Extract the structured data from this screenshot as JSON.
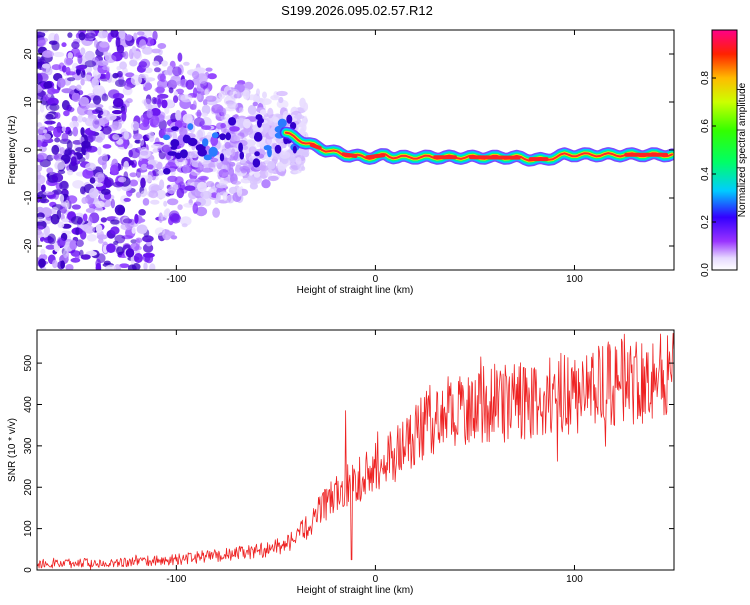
{
  "title": "S199.2026.095.02.57.R12",
  "chart_data": [
    {
      "type": "heatmap",
      "xlabel": "Height of straight line (km)",
      "ylabel": "Frequency (Hz)",
      "xlim": [
        -170,
        150
      ],
      "ylim": [
        -25,
        25
      ],
      "xticks": [
        -100,
        0,
        100
      ],
      "yticks": [
        -20,
        -10,
        0,
        10,
        20
      ],
      "ridge": {
        "x": [
          -45,
          -35,
          -25,
          -15,
          -5,
          0,
          5,
          10,
          30,
          50,
          70,
          80,
          85,
          95,
          110,
          130,
          150
        ],
        "y": [
          3.5,
          1.5,
          0.0,
          -1.0,
          -1.5,
          -1.5,
          -1.0,
          -1.5,
          -1.5,
          -1.5,
          -1.5,
          -2.0,
          -2.0,
          -1.0,
          -1.0,
          -1.0,
          -1.0
        ]
      },
      "colorbar": {
        "label": "Normalized spectral amplitude",
        "range": [
          0.0,
          1.0
        ],
        "ticks": [
          0.0,
          0.2,
          0.4,
          0.6,
          0.8
        ],
        "tick_labels": [
          "0.0",
          "0.2",
          "0.4",
          "0.6",
          "0.8"
        ],
        "colormap": "rainbow"
      }
    },
    {
      "type": "line",
      "xlabel": "Height of straight line (km)",
      "ylabel": "SNR (10 * v/v)",
      "xlim": [
        -170,
        150
      ],
      "ylim": [
        0,
        580
      ],
      "xticks": [
        -100,
        0,
        100
      ],
      "yticks": [
        0,
        100,
        200,
        300,
        400,
        500
      ],
      "color": "#ee2222",
      "trend": {
        "x": [
          -170,
          -120,
          -100,
          -80,
          -60,
          -45,
          -35,
          -25,
          -15,
          -5,
          0,
          10,
          20,
          30,
          50,
          80,
          100,
          120,
          150
        ],
        "y": [
          15,
          20,
          25,
          35,
          45,
          60,
          100,
          160,
          200,
          230,
          250,
          280,
          330,
          370,
          400,
          410,
          430,
          450,
          480
        ]
      },
      "spikes": [
        {
          "x": -15,
          "y": 385
        },
        {
          "x": -12,
          "y": 25
        },
        {
          "x": 125,
          "y": 570
        }
      ]
    }
  ]
}
